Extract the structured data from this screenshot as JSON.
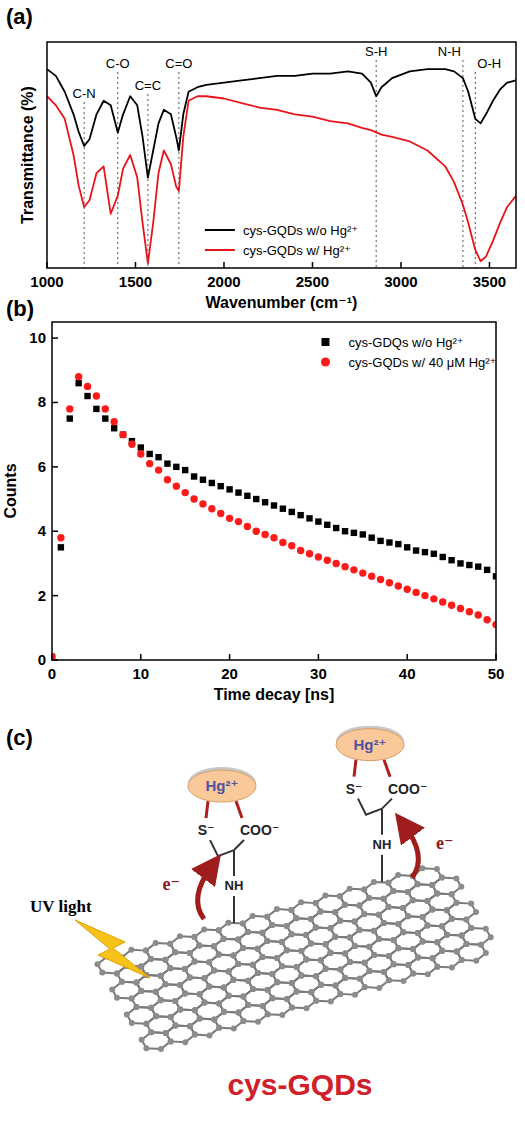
{
  "chart_data": [
    {
      "type": "line",
      "title": "(a)",
      "x_label": "Wavenumber (cm⁻¹)",
      "y_label": "Transmittance (%)",
      "x": [
        1000,
        1050,
        1100,
        1150,
        1180,
        1210,
        1240,
        1280,
        1320,
        1360,
        1400,
        1430,
        1470,
        1510,
        1540,
        1570,
        1600,
        1630,
        1660,
        1700,
        1730,
        1745,
        1770,
        1800,
        1850,
        1900,
        2000,
        2100,
        2200,
        2300,
        2400,
        2500,
        2600,
        2700,
        2780,
        2830,
        2860,
        2890,
        2950,
        3050,
        3150,
        3250,
        3300,
        3350,
        3380,
        3420,
        3450,
        3480,
        3520,
        3560,
        3600,
        3650
      ],
      "series": [
        {
          "name": "cys-GQDs w/o Hg²⁺",
          "color": "#000000",
          "line_style": "solid",
          "values": [
            88,
            85,
            78,
            68,
            60,
            54,
            57,
            68,
            74,
            72,
            60,
            68,
            76,
            72,
            58,
            40,
            52,
            64,
            70,
            68,
            58,
            52,
            68,
            78,
            80,
            81,
            82,
            83,
            84,
            85,
            85,
            86,
            86,
            87,
            86,
            82,
            76,
            80,
            84,
            87,
            88,
            88,
            87,
            84,
            78,
            66,
            64,
            68,
            74,
            79,
            82,
            83
          ]
        },
        {
          "name": "cys-GQDs w/ Hg²⁺",
          "color": "#e8141b",
          "line_style": "solid",
          "values": [
            76,
            72,
            66,
            50,
            36,
            27,
            30,
            42,
            45,
            24,
            32,
            44,
            50,
            40,
            20,
            2,
            20,
            42,
            52,
            46,
            36,
            34,
            58,
            74,
            76,
            76,
            75,
            73,
            71,
            70,
            68,
            67,
            65,
            64,
            62,
            61,
            60,
            59,
            58,
            56,
            52,
            45,
            38,
            28,
            20,
            8,
            3,
            5,
            12,
            20,
            27,
            32
          ]
        }
      ],
      "xlim": [
        1000,
        3650
      ],
      "xticks": [
        1000,
        1500,
        2000,
        2500,
        3000,
        3500
      ],
      "ylim": [
        0,
        100
      ],
      "tick_labels": "x",
      "legend": "lower center",
      "annotations": [
        {
          "text": "C-N",
          "x": 1210
        },
        {
          "text": "C-O",
          "x": 1400
        },
        {
          "text": "C=C",
          "x": 1570
        },
        {
          "text": "C=O",
          "x": 1745
        },
        {
          "text": "S-H",
          "x": 2860
        },
        {
          "text": "N-H",
          "x": 3350
        },
        {
          "text": "O-H",
          "x": 3420
        }
      ]
    },
    {
      "type": "scatter",
      "title": "(b)",
      "x_label": "Time decay [ns]",
      "y_label": "Counts",
      "x": [
        0,
        1,
        2,
        3,
        4,
        5,
        6,
        7,
        8,
        9,
        10,
        11,
        12,
        13,
        14,
        15,
        16,
        17,
        18,
        19,
        20,
        21,
        22,
        23,
        24,
        25,
        26,
        27,
        28,
        29,
        30,
        31,
        32,
        33,
        34,
        35,
        36,
        37,
        38,
        39,
        40,
        41,
        42,
        43,
        44,
        45,
        46,
        47,
        48,
        49,
        50
      ],
      "series": [
        {
          "name": "cys-GDQs w/o Hg²⁺",
          "color": "#000000",
          "marker": "square",
          "values": [
            0.1,
            3.5,
            7.5,
            8.6,
            8.2,
            7.8,
            7.5,
            7.2,
            7.0,
            6.8,
            6.6,
            6.4,
            6.3,
            6.1,
            6.0,
            5.9,
            5.7,
            5.6,
            5.5,
            5.4,
            5.3,
            5.2,
            5.1,
            5.0,
            4.9,
            4.8,
            4.7,
            4.6,
            4.5,
            4.4,
            4.3,
            4.2,
            4.1,
            4.0,
            3.95,
            3.9,
            3.8,
            3.7,
            3.65,
            3.6,
            3.5,
            3.4,
            3.35,
            3.3,
            3.2,
            3.1,
            3.0,
            2.95,
            2.9,
            2.8,
            2.6
          ]
        },
        {
          "name": "cys-GQDs w/ 40 μM Hg²⁺",
          "color": "#ff1a1a",
          "marker": "circle",
          "values": [
            0.1,
            3.8,
            7.8,
            8.8,
            8.5,
            8.2,
            7.8,
            7.4,
            7.0,
            6.7,
            6.4,
            6.1,
            5.9,
            5.6,
            5.4,
            5.2,
            5.0,
            4.85,
            4.7,
            4.55,
            4.4,
            4.3,
            4.15,
            4.0,
            3.9,
            3.8,
            3.65,
            3.55,
            3.4,
            3.3,
            3.2,
            3.1,
            3.0,
            2.9,
            2.8,
            2.7,
            2.6,
            2.5,
            2.4,
            2.3,
            2.2,
            2.1,
            2.0,
            1.9,
            1.8,
            1.7,
            1.6,
            1.5,
            1.4,
            1.25,
            1.1
          ]
        }
      ],
      "xlim": [
        0,
        50
      ],
      "xticks": [
        0,
        10,
        20,
        30,
        40,
        50
      ],
      "ylim": [
        0,
        10.5
      ],
      "yticks": [
        0,
        2,
        4,
        6,
        8,
        10
      ],
      "legend": "upper right"
    }
  ],
  "diagram": {
    "label": "(c)",
    "light": "UV light",
    "name": "cys-GQDs",
    "groups": [
      {
        "ion": "Hg²⁺",
        "thiol": "S⁻",
        "carboxyl": "COO⁻",
        "amine": "NH",
        "electron": "e⁻"
      },
      {
        "ion": "Hg²⁺",
        "thiol": "S⁻",
        "carboxyl": "COO⁻",
        "amine": "NH",
        "electron": "e⁻"
      }
    ]
  }
}
